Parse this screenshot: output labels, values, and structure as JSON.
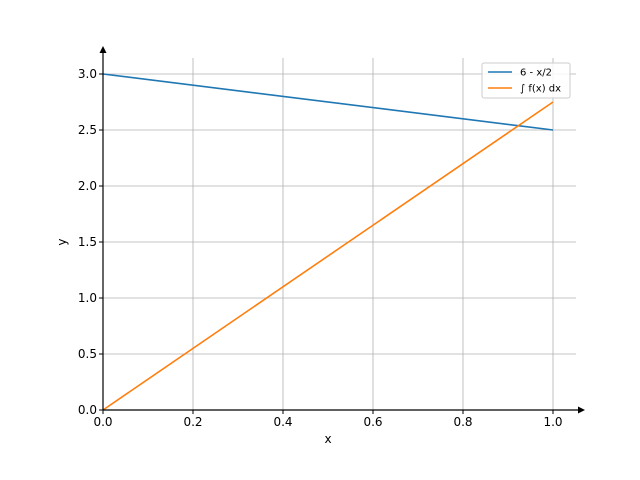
{
  "chart_data": {
    "type": "line",
    "title": "",
    "xlabel": "x",
    "ylabel": "y",
    "xlim": [
      0,
      1.05
    ],
    "ylim": [
      0,
      3.2
    ],
    "grid": true,
    "legend_position": "top-right",
    "x_ticks": [
      0.0,
      0.2,
      0.4,
      0.6,
      0.8,
      1.0
    ],
    "x_tick_labels": [
      "0.0",
      "0.2",
      "0.4",
      "0.6",
      "0.8",
      "1.0"
    ],
    "y_ticks": [
      0.0,
      0.5,
      1.0,
      1.5,
      2.0,
      2.5,
      3.0
    ],
    "y_tick_labels": [
      "0.0",
      "0.5",
      "1.0",
      "1.5",
      "2.0",
      "2.5",
      "3.0"
    ],
    "series": [
      {
        "name": "6 - x/2",
        "color": "#1f77b4",
        "x": [
          0.0,
          1.0
        ],
        "y": [
          3.0,
          2.5
        ]
      },
      {
        "name": "∫ f(x) dx",
        "color": "#ff7f0e",
        "x": [
          0.0,
          1.0
        ],
        "y": [
          0.0,
          2.75
        ]
      }
    ]
  }
}
